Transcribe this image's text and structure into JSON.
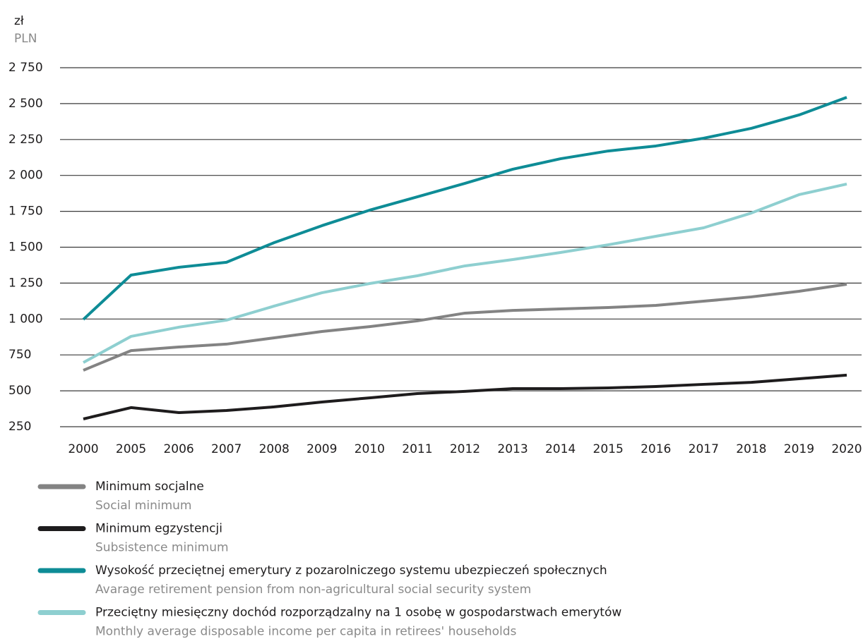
{
  "chart_data": {
    "type": "line",
    "y_label": "zł",
    "y_label_en": "PLN",
    "categories": [
      "2000",
      "2005",
      "2006",
      "2007",
      "2008",
      "2009",
      "2010",
      "2011",
      "2012",
      "2013",
      "2014",
      "2015",
      "2016",
      "2017",
      "2018",
      "2019",
      "2020"
    ],
    "ylim": [
      250,
      2750
    ],
    "yticks": [
      250,
      500,
      750,
      {
        "value": 1000,
        "label": "1 000"
      },
      {
        "value": 1250,
        "label": "1 250"
      },
      {
        "value": 1500,
        "label": "1 500"
      },
      {
        "value": 1750,
        "label": "1 750"
      },
      {
        "value": 2000,
        "label": "2 000"
      },
      {
        "value": 2250,
        "label": "2 250"
      },
      {
        "value": 2500,
        "label": "2 500"
      },
      {
        "value": 2750,
        "label": "2 750"
      }
    ],
    "grid": true,
    "series": [
      {
        "name": "Minimum socjalne",
        "name_en": "Social minimum",
        "color": "#838383",
        "values": [
          643,
          780,
          805,
          825,
          869,
          913,
          947,
          987,
          1041,
          1060,
          1070,
          1080,
          1095,
          1124,
          1154,
          1193,
          1242
        ]
      },
      {
        "name": "Minimum egzystencji",
        "name_en": "Subsistence minimum",
        "color": "#1e1c1d",
        "values": [
          304,
          383,
          348,
          363,
          388,
          422,
          451,
          481,
          496,
          515,
          515,
          520,
          530,
          545,
          559,
          584,
          609
        ]
      },
      {
        "name": "Wysokość przeciętnej emerytury z pozarolniczego systemu ubezpieczeń społecznych",
        "name_en": "Avarage retirement pension from non-agricultural social security system",
        "color": "#0e8c96",
        "values": [
          997,
          1306,
          1360,
          1395,
          1532,
          1650,
          1758,
          1851,
          1945,
          2043,
          2116,
          2170,
          2205,
          2259,
          2328,
          2421,
          2544
        ]
      },
      {
        "name": "Przeciętny miesięczny dochód rozporządzalny na 1 osobę w gospodarstwach emerytów",
        "name_en": "Monthly average disposable income per capita in retirees' households",
        "color": "#8ecfd0",
        "values": [
          697,
          879,
          943,
          992,
          1090,
          1183,
          1247,
          1301,
          1370,
          1414,
          1463,
          1517,
          1576,
          1635,
          1738,
          1866,
          1940
        ]
      }
    ]
  }
}
